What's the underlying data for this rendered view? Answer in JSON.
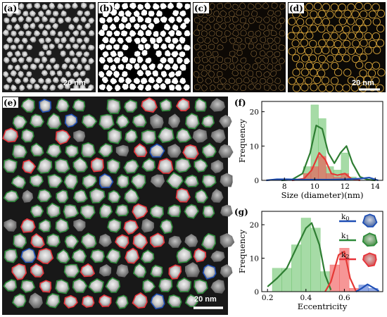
{
  "panels": {
    "a": {
      "label": "(a)",
      "scale": "20 nm"
    },
    "b": {
      "label": "(b)"
    },
    "c": {
      "label": "(c)"
    },
    "d": {
      "label": "(d)",
      "scale": "20 nm"
    },
    "e": {
      "label": "(e)",
      "scale": "20 nm"
    },
    "f": {
      "label": "(f)"
    },
    "g": {
      "label": "(g)"
    }
  },
  "colors": {
    "k0": "#1f4fb5",
    "k1": "#2e8b3a",
    "k2": "#e8333a",
    "outline": "#d4a23a"
  },
  "chart_data": [
    {
      "type": "bar",
      "panel": "f",
      "xlabel": "Size (diameter)(nm)",
      "ylabel": "Frequency",
      "xlim": [
        6.5,
        14.5
      ],
      "ylim": [
        0,
        23
      ],
      "xticks": [
        8,
        10,
        12,
        14
      ],
      "yticks": [
        0,
        10,
        20
      ],
      "series": [
        {
          "color": "green",
          "bars": [
            {
              "x": 9.5,
              "y": 4
            },
            {
              "x": 10,
              "y": 22
            },
            {
              "x": 10.5,
              "y": 18
            },
            {
              "x": 11,
              "y": 4
            },
            {
              "x": 11.5,
              "y": 3
            },
            {
              "x": 12,
              "y": 8
            },
            {
              "x": 12.5,
              "y": 1
            }
          ]
        },
        {
          "color": "red",
          "bars": [
            {
              "x": 9.5,
              "y": 2
            },
            {
              "x": 10,
              "y": 4
            },
            {
              "x": 10.5,
              "y": 7
            },
            {
              "x": 11,
              "y": 2
            },
            {
              "x": 11.5,
              "y": 1
            },
            {
              "x": 12,
              "y": 2
            }
          ]
        }
      ],
      "curves": [
        {
          "color": "green",
          "points": [
            [
              7.8,
              0
            ],
            [
              8.5,
              0.2
            ],
            [
              9.2,
              2
            ],
            [
              9.7,
              8
            ],
            [
              10.1,
              16
            ],
            [
              10.5,
              15
            ],
            [
              10.9,
              8
            ],
            [
              11.3,
              5
            ],
            [
              11.7,
              8
            ],
            [
              12.1,
              10
            ],
            [
              12.5,
              5
            ],
            [
              13,
              1
            ],
            [
              13.5,
              0.2
            ],
            [
              14,
              0
            ]
          ]
        },
        {
          "color": "red",
          "points": [
            [
              8.5,
              0
            ],
            [
              9.3,
              0.5
            ],
            [
              9.8,
              3
            ],
            [
              10.3,
              8
            ],
            [
              10.7,
              6
            ],
            [
              11.1,
              2
            ],
            [
              11.5,
              1.5
            ],
            [
              12,
              2
            ],
            [
              12.4,
              0.5
            ],
            [
              13,
              0
            ]
          ]
        },
        {
          "color": "blue",
          "points": [
            [
              6.8,
              0
            ],
            [
              7.5,
              0.3
            ],
            [
              8.2,
              0.3
            ],
            [
              9,
              0.2
            ],
            [
              10,
              0.2
            ],
            [
              11,
              0.2
            ],
            [
              12,
              0.3
            ],
            [
              13,
              0.5
            ],
            [
              13.6,
              0.8
            ],
            [
              14.2,
              0
            ]
          ]
        }
      ]
    },
    {
      "type": "bar",
      "panel": "g",
      "xlabel": "Eccentricity",
      "ylabel": "Frequency",
      "xlim": [
        0.17,
        0.8
      ],
      "ylim": [
        0,
        24
      ],
      "xticks": [
        0.2,
        0.4,
        0.6
      ],
      "yticks": [
        0,
        10,
        20
      ],
      "series": [
        {
          "color": "green",
          "bars": [
            {
              "x": 0.25,
              "y": 7
            },
            {
              "x": 0.3,
              "y": 7
            },
            {
              "x": 0.35,
              "y": 14
            },
            {
              "x": 0.4,
              "y": 22
            },
            {
              "x": 0.45,
              "y": 19
            },
            {
              "x": 0.5,
              "y": 6
            }
          ]
        },
        {
          "color": "red",
          "bars": [
            {
              "x": 0.55,
              "y": 8
            },
            {
              "x": 0.6,
              "y": 13
            },
            {
              "x": 0.65,
              "y": 1
            }
          ]
        },
        {
          "color": "blue",
          "bars": [
            {
              "x": 0.7,
              "y": 2
            },
            {
              "x": 0.75,
              "y": 1
            }
          ]
        }
      ],
      "curves": [
        {
          "color": "green",
          "points": [
            [
              0.2,
              1.5
            ],
            [
              0.25,
              4
            ],
            [
              0.3,
              7
            ],
            [
              0.35,
              13
            ],
            [
              0.4,
              19
            ],
            [
              0.43,
              20.5
            ],
            [
              0.47,
              14
            ],
            [
              0.5,
              5
            ],
            [
              0.53,
              0.5
            ]
          ]
        },
        {
          "color": "red",
          "points": [
            [
              0.5,
              0
            ],
            [
              0.53,
              3
            ],
            [
              0.57,
              11
            ],
            [
              0.6,
              12
            ],
            [
              0.63,
              4
            ],
            [
              0.66,
              0.2
            ]
          ]
        },
        {
          "color": "blue",
          "points": [
            [
              0.66,
              0
            ],
            [
              0.69,
              1
            ],
            [
              0.72,
              2.2
            ],
            [
              0.75,
              1.2
            ],
            [
              0.78,
              0.2
            ]
          ]
        }
      ],
      "legend": {
        "placement": "right",
        "entries": [
          {
            "key": "k0",
            "sub": "0"
          },
          {
            "key": "k1",
            "sub": "1"
          },
          {
            "key": "k2",
            "sub": "2"
          }
        ]
      }
    }
  ]
}
